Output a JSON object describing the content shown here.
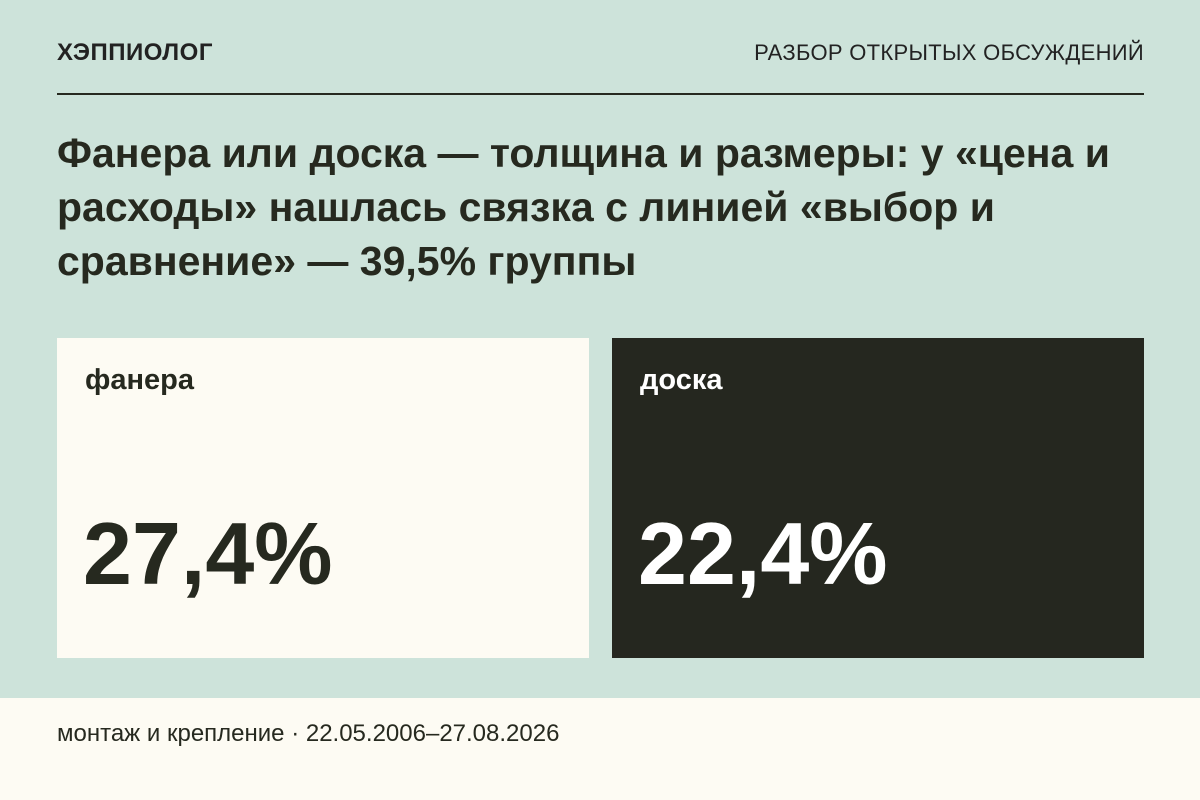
{
  "header": {
    "brand": "ХЭППИОЛОГ",
    "section": "РАЗБОР ОТКРЫТЫХ ОБСУЖДЕНИЙ"
  },
  "headline": "Фанера или доска — толщина и размеры: у «цена и расходы» нашлась связка с линией «выбор и сравнение» — 39,5% группы",
  "cards": [
    {
      "label": "фанера",
      "value": "27,4%"
    },
    {
      "label": "доска",
      "value": "22,4%"
    }
  ],
  "footer": {
    "text": "монтаж и крепление · 22.05.2006–27.08.2026"
  },
  "colors": {
    "background": "#cde3da",
    "light_card": "#fdfbf3",
    "dark_card": "#25271f",
    "text_dark": "#26291f"
  }
}
